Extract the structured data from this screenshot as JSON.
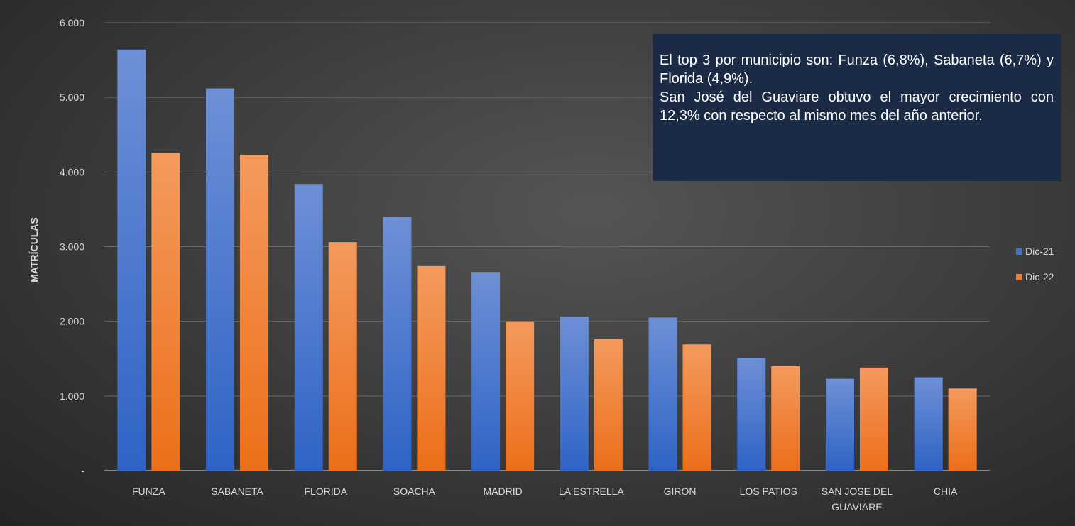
{
  "chart_data": {
    "type": "bar",
    "title": "",
    "xlabel": "",
    "ylabel": "MATRÍCULAS",
    "categories": [
      "FUNZA",
      "SABANETA",
      "FLORIDA",
      "SOACHA",
      "MADRID",
      "LA ESTRELLA",
      "GIRON",
      "LOS PATIOS",
      "SAN JOSE DEL GUAVIARE",
      "CHIA"
    ],
    "series": [
      {
        "name": "Dic-21",
        "color": "#4472c4",
        "values": [
          5640,
          5120,
          3840,
          3400,
          2660,
          2060,
          2050,
          1510,
          1230,
          1250
        ]
      },
      {
        "name": "Dic-22",
        "color": "#ed7d31",
        "values": [
          4260,
          4230,
          3060,
          2740,
          2000,
          1760,
          1690,
          1400,
          1380,
          1100
        ]
      }
    ],
    "ylim": [
      0,
      6000
    ],
    "yticks": [
      0,
      1000,
      2000,
      3000,
      4000,
      5000,
      6000
    ],
    "ytick_labels": [
      "-",
      "1.000",
      "2.000",
      "3.000",
      "4.000",
      "5.000",
      "6.000"
    ],
    "grid": true,
    "legend_position": "right",
    "annotation": [
      "El top 3 por municipio son: Funza (6,8%), Sabaneta (6,7%) y  Florida (4,9%).",
      "San José del Guaviare obtuvo el mayor crecimiento con 12,3% con respecto al mismo mes del año anterior."
    ]
  }
}
